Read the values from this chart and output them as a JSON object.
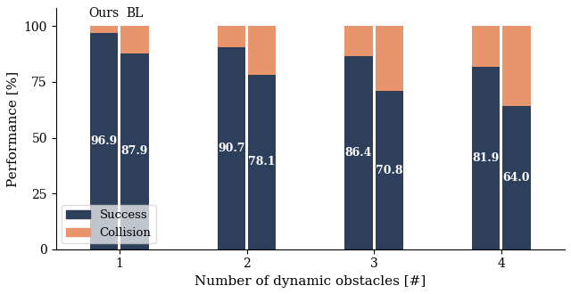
{
  "obstacles": [
    1,
    2,
    3,
    4
  ],
  "ours_success": [
    96.9,
    90.7,
    86.4,
    81.9
  ],
  "ours_collision": [
    3.1,
    9.3,
    13.6,
    18.1
  ],
  "bl_success": [
    87.9,
    78.1,
    70.8,
    64.0
  ],
  "bl_collision": [
    12.1,
    21.9,
    29.2,
    36.0
  ],
  "color_success": "#2e3f5c",
  "color_collision": "#e8956d",
  "bar_width": 0.22,
  "ylabel": "Performance [%]",
  "xlabel": "Number of dynamic obstacles [#]",
  "ylim": [
    0,
    108
  ],
  "yticks": [
    0,
    25,
    50,
    75,
    100
  ],
  "label_success": "Success",
  "label_collision": "Collision",
  "label_ours": "Ours",
  "label_bl": "BL",
  "text_fontsize": 9.0,
  "legend_fontsize": 9.5,
  "axis_label_fontsize": 11
}
